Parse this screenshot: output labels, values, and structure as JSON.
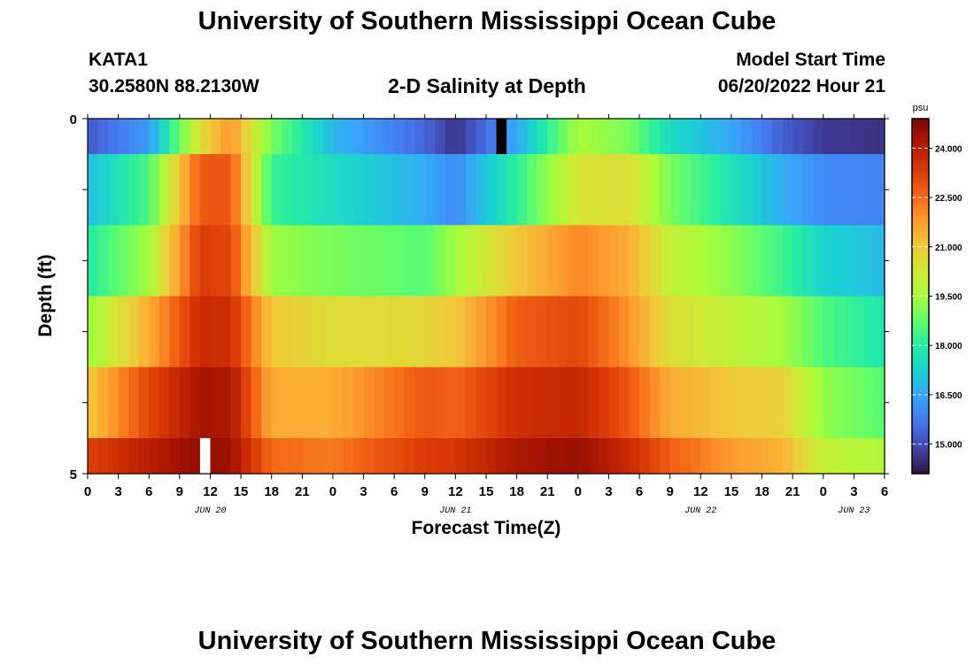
{
  "header": {
    "title": "University of Southern Mississippi Ocean Cube",
    "station": "KATA1",
    "coords": "30.2580N  88.2130W",
    "subtitle": "2-D Salinity at Depth",
    "model_start_label": "Model Start Time",
    "model_start_value": "06/20/2022 Hour 21"
  },
  "footer": {
    "title": "University of Southern Mississippi Ocean Cube"
  },
  "chart_data": {
    "type": "heatmap",
    "title": "2-D Salinity at Depth",
    "xlabel": "Forecast Time(Z)",
    "ylabel": "Depth (ft)",
    "x_hours": [
      0,
      6,
      11,
      14,
      18,
      24,
      33,
      36,
      42,
      48,
      53,
      57,
      63,
      68,
      72,
      78
    ],
    "x_tick_labels": [
      "0",
      "3",
      "6",
      "9",
      "12",
      "15",
      "18",
      "21",
      "0",
      "3",
      "6",
      "9",
      "12",
      "15",
      "18",
      "21",
      "0",
      "3",
      "6",
      "9",
      "12",
      "15",
      "18",
      "21",
      "0",
      "3",
      "6"
    ],
    "day_labels": [
      {
        "label": "JUN 20",
        "hour": 12
      },
      {
        "label": "JUN 21",
        "hour": 36
      },
      {
        "label": "JUN 22",
        "hour": 60
      },
      {
        "label": "JUN 23",
        "hour": 75
      }
    ],
    "y_tick_labels": [
      "0",
      "5"
    ],
    "ylim": [
      0,
      5
    ],
    "xlim_hours": [
      0,
      78
    ],
    "colorbar": {
      "unit": "psu",
      "range": [
        14.1,
        24.9
      ],
      "ticks": [
        "15.000",
        "16.500",
        "18.000",
        "19.500",
        "21.000",
        "22.500",
        "24.000"
      ],
      "tick_values": [
        15.0,
        16.5,
        18.0,
        19.5,
        21.0,
        22.5,
        24.0
      ]
    },
    "colormap": [
      "#30123b",
      "#4145ab",
      "#4675ed",
      "#39a2fc",
      "#1bcfd4",
      "#24eca6",
      "#61fc6c",
      "#a4fc3b",
      "#d1e834",
      "#f3c63a",
      "#fe9b2d",
      "#f36315",
      "#d93806",
      "#b11901",
      "#7a0402"
    ],
    "rows": [
      {
        "depth": "0.0-0.5",
        "values": [
          15.2,
          16.3,
          20.5,
          21.9,
          19.0,
          16.8,
          15.4,
          14.6,
          16.5,
          19.6,
          19.0,
          17.5,
          16.5,
          15.3,
          14.7,
          14.6
        ]
      },
      {
        "depth": "0.5-1.5",
        "values": [
          16.9,
          18.5,
          22.8,
          22.8,
          18.2,
          17.5,
          16.6,
          16.0,
          18.1,
          20.4,
          20.5,
          19.0,
          17.7,
          16.6,
          16.0,
          15.9
        ]
      },
      {
        "depth": "1.5-2.5",
        "values": [
          17.9,
          19.5,
          23.3,
          23.1,
          19.4,
          19.0,
          18.6,
          19.5,
          21.0,
          22.1,
          21.5,
          20.0,
          19.2,
          18.3,
          17.3,
          16.8
        ]
      },
      {
        "depth": "2.5-3.5",
        "values": [
          19.3,
          21.5,
          23.7,
          23.6,
          21.0,
          20.5,
          20.7,
          21.0,
          22.7,
          23.1,
          21.9,
          20.5,
          20.0,
          19.5,
          18.5,
          17.8
        ]
      },
      {
        "depth": "3.5-4.5",
        "values": [
          21.0,
          23.1,
          24.3,
          24.2,
          21.5,
          21.5,
          22.8,
          22.6,
          23.6,
          23.8,
          22.8,
          21.5,
          21.0,
          20.8,
          19.3,
          18.6
        ]
      },
      {
        "depth": "4.5-5.0",
        "values": [
          23.2,
          24.0,
          24.6,
          24.4,
          22.5,
          22.3,
          23.3,
          23.4,
          24.2,
          24.5,
          23.7,
          22.7,
          21.8,
          21.4,
          20.0,
          19.7
        ]
      }
    ],
    "missing_cells": [
      {
        "depth": "0.0-0.5",
        "hour": 40,
        "color": "#000000"
      },
      {
        "depth": "4.5-5.0",
        "hour": 11,
        "color": "#ffffff"
      }
    ]
  }
}
